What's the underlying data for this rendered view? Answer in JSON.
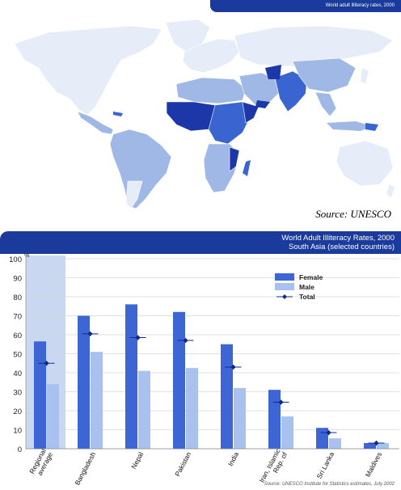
{
  "map": {
    "header_title": "World adult illiteracy rates, 2000",
    "source": "Source: UNESCO",
    "colors": {
      "ocean": "#ffffff",
      "low": "#e6ecf8",
      "mid": "#9fb8e6",
      "high": "#3a64cf",
      "highest": "#1c38a8"
    }
  },
  "chart_header": {
    "line1": "World Adult Illiteracy Rates, 2000",
    "line2": "South Asia (selected countries)"
  },
  "chart_data": {
    "type": "bar",
    "title": "World Adult Illiteracy Rates, 2000",
    "subtitle": "South Asia (selected countries)",
    "ylabel": "%",
    "ylim": [
      0,
      100
    ],
    "yticks": [
      0,
      10,
      20,
      30,
      40,
      50,
      60,
      70,
      80,
      90,
      100
    ],
    "categories": [
      "Regional average",
      "Bangladesh",
      "Nepal",
      "Pakistan",
      "India",
      "Iran, Islamic Rep. of",
      "Sri Lanka",
      "Maldives"
    ],
    "series": [
      {
        "name": "Female",
        "color": "#3d66d4",
        "values": [
          56.5,
          70,
          76,
          72,
          55,
          31,
          11,
          3
        ]
      },
      {
        "name": "Male",
        "color": "#a9c1ee",
        "values": [
          34,
          51,
          41,
          42.5,
          32,
          17,
          5.5,
          3
        ]
      },
      {
        "name": "Total",
        "color": "#0f2a8f",
        "marker": "diamond",
        "values": [
          45,
          60.5,
          58.5,
          57,
          43,
          24.5,
          8.5,
          3
        ]
      }
    ],
    "highlight_category": "Regional average",
    "highlight_color": "#c9d8f0",
    "legend_position": "top-right",
    "grid": true,
    "source": "Source: UNESCO Institute for Statistics estimates, July 2002"
  }
}
